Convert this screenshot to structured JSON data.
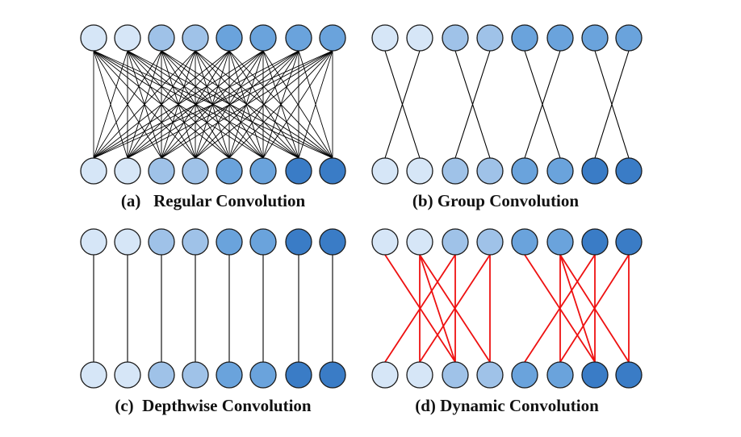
{
  "node_colors": [
    "#d6e6f7",
    "#d6e6f7",
    "#9fc2e8",
    "#9fc2e8",
    "#6aa3dc",
    "#6aa3dc",
    "#3a7cc6",
    "#3a7cc6"
  ],
  "panels": [
    {
      "id": "regular",
      "caption": "(a)   Regular Convolution",
      "edge_color": "#000000",
      "connectivity": "full",
      "top_node_colors": [
        0,
        0,
        2,
        2,
        4,
        4,
        4,
        4
      ],
      "bottom_node_colors": [
        0,
        0,
        2,
        2,
        4,
        4,
        6,
        6
      ]
    },
    {
      "id": "group",
      "caption": "(b) Group Convolution",
      "edge_color": "#000000",
      "connectivity": "group-2",
      "top_node_colors": [
        0,
        0,
        2,
        2,
        4,
        4,
        4,
        4
      ],
      "bottom_node_colors": [
        0,
        0,
        2,
        2,
        4,
        4,
        6,
        6
      ]
    },
    {
      "id": "depthwise",
      "caption": "(c)  Depthwise Convolution",
      "edge_color": "#000000",
      "connectivity": "depthwise",
      "top_node_colors": [
        0,
        0,
        2,
        2,
        4,
        4,
        6,
        6
      ],
      "bottom_node_colors": [
        0,
        0,
        2,
        2,
        4,
        4,
        6,
        6
      ]
    },
    {
      "id": "dynamic",
      "caption": "(d) Dynamic Convolution",
      "edge_color": "#ee1111",
      "connectivity": "dynamic",
      "top_node_colors": [
        0,
        0,
        2,
        2,
        4,
        4,
        6,
        6
      ],
      "bottom_node_colors": [
        0,
        0,
        2,
        2,
        4,
        4,
        6,
        6
      ]
    }
  ]
}
